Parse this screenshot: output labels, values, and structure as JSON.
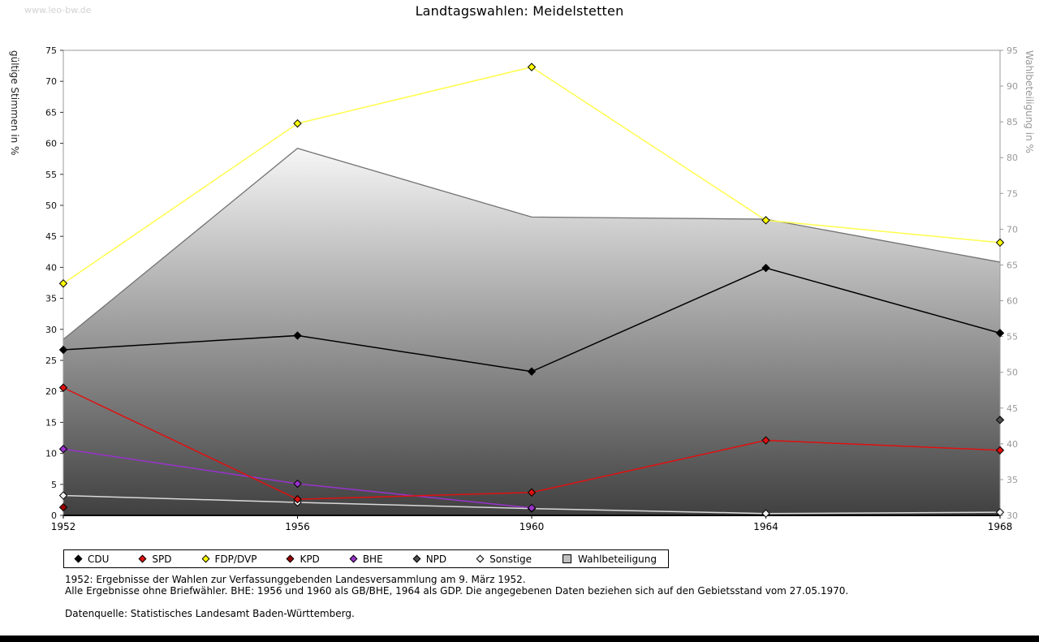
{
  "page": {
    "watermark": "www.leo-bw.de"
  },
  "chart_data": {
    "type": "line",
    "title": "Landtagswahlen: Meidelstetten",
    "x": [
      1952,
      1956,
      1960,
      1964,
      1968
    ],
    "left_axis": {
      "label": "gültige Stimmen in %",
      "range": [
        0,
        75
      ],
      "tick_step": 5
    },
    "right_axis": {
      "label": "Wahlbeteiligung in %",
      "range": [
        30,
        95
      ],
      "tick_step": 5
    },
    "legend_position": "bottom",
    "grid": false,
    "series": [
      {
        "name": "CDU",
        "kind": "line",
        "axis": "left",
        "color": "#000000",
        "marker": "#000000",
        "values": [
          26.7,
          29.0,
          23.2,
          39.9,
          29.4
        ]
      },
      {
        "name": "SPD",
        "kind": "line",
        "axis": "left",
        "color": "#e01010",
        "marker": "#e01010",
        "values": [
          20.6,
          2.6,
          3.7,
          12.1,
          10.5
        ]
      },
      {
        "name": "FDP/DVP",
        "kind": "line",
        "axis": "left",
        "color": "#ffff4d",
        "marker": "#ffff00",
        "values": [
          37.4,
          63.2,
          72.3,
          47.6,
          44.0
        ]
      },
      {
        "name": "KPD",
        "kind": "line",
        "axis": "left",
        "color": "#990000",
        "marker": "#990000",
        "values": [
          1.3,
          null,
          null,
          null,
          null
        ]
      },
      {
        "name": "BHE",
        "kind": "line",
        "axis": "left",
        "color": "#9933cc",
        "marker": "#9933cc",
        "values": [
          10.7,
          5.1,
          1.2,
          null,
          null
        ]
      },
      {
        "name": "NPD",
        "kind": "line",
        "axis": "left",
        "color": "#4d4d4d",
        "marker": "#4d4d4d",
        "values": [
          null,
          null,
          null,
          null,
          15.4
        ]
      },
      {
        "name": "Sonstige",
        "kind": "line",
        "axis": "left",
        "color": "#d9d9d9",
        "marker": "#f0f0f0",
        "values": [
          3.2,
          2.1,
          1.1,
          0.3,
          0.5
        ]
      },
      {
        "name": "Wahlbeteiligung",
        "kind": "area",
        "axis": "right",
        "color": "#737373",
        "fill_top": "#f6f6f6",
        "fill_bottom": "#404040",
        "legend_fill": "#bfbfbf",
        "values": [
          54.6,
          81.3,
          71.7,
          71.4,
          65.4
        ]
      }
    ]
  },
  "footnotes": {
    "line1": "1952: Ergebnisse der Wahlen zur Verfassunggebenden Landesversammlung am 9. März 1952.",
    "line2": "Alle Ergebnisse ohne Briefwähler. BHE: 1956 und 1960 als GB/BHE, 1964 als GDP. Die angegebenen Daten beziehen sich auf den Gebietsstand vom 27.05.1970.",
    "line3": "Datenquelle: Statistisches Landesamt Baden-Württemberg."
  }
}
